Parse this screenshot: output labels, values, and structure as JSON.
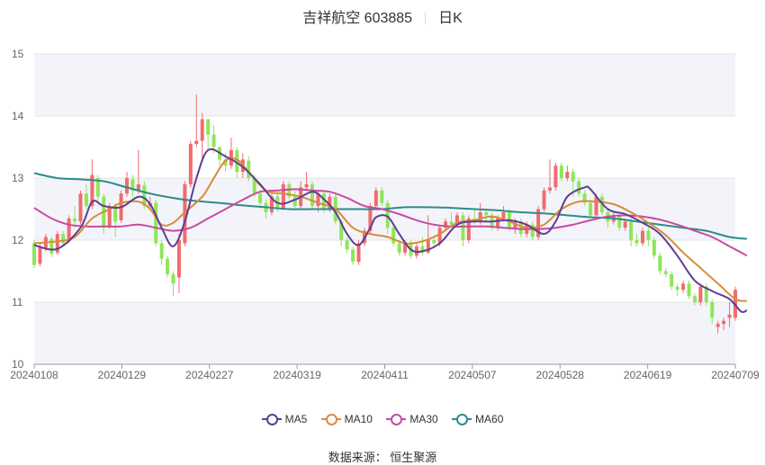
{
  "header": {
    "name": "吉祥航空 603885",
    "period": "日K"
  },
  "legend": {
    "ma5": "MA5",
    "ma10": "MA10",
    "ma30": "MA30",
    "ma60": "MA60"
  },
  "source": "数据来源：  恒生聚源",
  "colors": {
    "up": "#f26b6b",
    "down": "#8ee65a",
    "ma5": "#5d3e96",
    "ma10": "#d98b3a",
    "ma30": "#c84ba0",
    "ma60": "#2e8b8b",
    "band": "#f3f4fa",
    "grid": "#e3e3e3"
  },
  "chart_data": {
    "type": "candlestick",
    "ylim": [
      10,
      15
    ],
    "yticks": [
      10,
      11,
      12,
      13,
      14,
      15
    ],
    "xticks": [
      "20240108",
      "20240129",
      "20240227",
      "20240319",
      "20240411",
      "20240507",
      "20240528",
      "20240619",
      "20240709"
    ],
    "candles": [
      [
        11.95,
        11.6,
        12.0,
        11.55
      ],
      [
        11.62,
        11.88,
        11.95,
        11.58
      ],
      [
        11.86,
        12.05,
        12.1,
        11.82
      ],
      [
        12.02,
        11.78,
        12.05,
        11.72
      ],
      [
        11.8,
        12.1,
        12.15,
        11.76
      ],
      [
        12.1,
        11.95,
        12.15,
        11.9
      ],
      [
        11.98,
        12.35,
        12.4,
        11.95
      ],
      [
        12.35,
        12.3,
        12.55,
        12.2
      ],
      [
        12.3,
        12.75,
        12.8,
        12.25
      ],
      [
        12.75,
        12.55,
        12.9,
        12.5
      ],
      [
        12.55,
        13.05,
        13.3,
        12.5
      ],
      [
        13.0,
        12.7,
        13.05,
        12.6
      ],
      [
        12.7,
        12.2,
        12.75,
        12.1
      ],
      [
        12.22,
        12.55,
        12.6,
        12.18
      ],
      [
        12.55,
        12.3,
        12.6,
        12.05
      ],
      [
        12.32,
        12.75,
        12.8,
        12.28
      ],
      [
        12.75,
        13.0,
        13.1,
        12.7
      ],
      [
        12.98,
        12.8,
        13.05,
        12.7
      ],
      [
        12.8,
        12.9,
        13.45,
        12.75
      ],
      [
        12.88,
        12.55,
        12.95,
        12.5
      ],
      [
        12.55,
        12.6,
        12.7,
        12.5
      ],
      [
        12.6,
        11.95,
        12.65,
        11.9
      ],
      [
        11.95,
        11.7,
        12.0,
        11.6
      ],
      [
        11.7,
        11.45,
        11.75,
        11.4
      ],
      [
        11.45,
        11.3,
        11.5,
        11.1
      ],
      [
        11.4,
        12.0,
        12.1,
        11.15
      ],
      [
        11.95,
        12.9,
        12.95,
        11.9
      ],
      [
        12.9,
        13.55,
        13.6,
        12.85
      ],
      [
        13.55,
        13.6,
        14.35,
        13.5
      ],
      [
        13.6,
        13.95,
        14.05,
        13.3
      ],
      [
        13.95,
        13.7,
        13.9,
        13.45
      ],
      [
        13.7,
        13.5,
        13.85,
        13.4
      ],
      [
        13.5,
        13.3,
        13.5,
        13.2
      ],
      [
        13.3,
        13.2,
        13.4,
        13.1
      ],
      [
        13.2,
        13.45,
        13.65,
        13.15
      ],
      [
        13.45,
        13.1,
        13.5,
        13.0
      ],
      [
        13.1,
        13.3,
        13.4,
        13.0
      ],
      [
        13.28,
        13.0,
        13.35,
        12.95
      ],
      [
        13.0,
        12.75,
        13.05,
        12.7
      ],
      [
        12.75,
        12.6,
        12.8,
        12.5
      ],
      [
        12.6,
        12.45,
        12.65,
        12.35
      ],
      [
        12.45,
        12.7,
        12.75,
        12.4
      ],
      [
        12.7,
        12.5,
        12.75,
        12.45
      ],
      [
        12.5,
        12.9,
        12.95,
        12.48
      ],
      [
        12.9,
        12.7,
        12.95,
        12.65
      ],
      [
        12.7,
        12.55,
        12.8,
        12.5
      ],
      [
        12.55,
        12.85,
        12.95,
        12.5
      ],
      [
        12.85,
        12.9,
        13.1,
        12.8
      ],
      [
        12.9,
        12.55,
        12.95,
        12.5
      ],
      [
        12.55,
        12.75,
        12.8,
        12.45
      ],
      [
        12.75,
        12.5,
        12.8,
        12.45
      ],
      [
        12.5,
        12.7,
        12.75,
        12.45
      ],
      [
        12.7,
        12.3,
        12.75,
        12.25
      ],
      [
        12.3,
        12.0,
        12.35,
        11.9
      ],
      [
        12.0,
        11.85,
        12.05,
        11.8
      ],
      [
        11.85,
        11.65,
        11.9,
        11.6
      ],
      [
        11.65,
        11.95,
        12.0,
        11.6
      ],
      [
        11.95,
        12.15,
        12.2,
        11.9
      ],
      [
        12.15,
        12.55,
        12.6,
        12.1
      ],
      [
        12.55,
        12.8,
        12.85,
        12.5
      ],
      [
        12.8,
        12.6,
        12.85,
        12.55
      ],
      [
        12.6,
        12.2,
        12.65,
        12.1
      ],
      [
        12.2,
        11.95,
        12.25,
        11.9
      ],
      [
        11.95,
        11.8,
        12.0,
        11.75
      ],
      [
        11.8,
        11.95,
        12.0,
        11.75
      ],
      [
        11.95,
        11.75,
        12.0,
        11.7
      ],
      [
        11.75,
        11.9,
        11.95,
        11.7
      ],
      [
        11.9,
        11.8,
        12.05,
        11.75
      ],
      [
        11.8,
        12.0,
        12.4,
        11.78
      ],
      [
        12.0,
        11.95,
        12.05,
        11.9
      ],
      [
        11.95,
        12.2,
        12.25,
        11.9
      ],
      [
        12.2,
        12.3,
        12.35,
        12.15
      ],
      [
        12.3,
        12.25,
        12.45,
        12.2
      ],
      [
        12.25,
        12.4,
        12.45,
        12.2
      ],
      [
        12.4,
        12.0,
        12.45,
        11.9
      ],
      [
        12.0,
        12.35,
        12.4,
        11.95
      ],
      [
        12.35,
        12.3,
        12.5,
        12.25
      ],
      [
        12.3,
        12.45,
        12.6,
        12.25
      ],
      [
        12.45,
        12.4,
        12.5,
        12.3
      ],
      [
        12.4,
        12.2,
        12.45,
        12.15
      ],
      [
        12.2,
        12.35,
        12.4,
        12.15
      ],
      [
        12.35,
        12.45,
        12.55,
        12.3
      ],
      [
        12.45,
        12.2,
        12.5,
        12.15
      ],
      [
        12.2,
        12.3,
        12.35,
        12.1
      ],
      [
        12.3,
        12.1,
        12.35,
        12.05
      ],
      [
        12.1,
        12.25,
        12.3,
        12.05
      ],
      [
        12.25,
        12.05,
        12.3,
        12.0
      ],
      [
        12.05,
        12.5,
        12.55,
        12.0
      ],
      [
        12.5,
        12.8,
        12.85,
        12.45
      ],
      [
        12.8,
        12.85,
        13.3,
        12.75
      ],
      [
        12.85,
        13.2,
        13.25,
        12.8
      ],
      [
        13.2,
        13.0,
        13.25,
        12.95
      ],
      [
        13.0,
        13.1,
        13.2,
        12.95
      ],
      [
        13.1,
        12.95,
        13.15,
        12.7
      ],
      [
        12.95,
        12.75,
        13.0,
        12.7
      ],
      [
        12.75,
        12.6,
        12.8,
        12.55
      ],
      [
        12.6,
        12.4,
        12.65,
        12.35
      ],
      [
        12.4,
        12.7,
        12.75,
        12.35
      ],
      [
        12.7,
        12.45,
        12.75,
        12.4
      ],
      [
        12.45,
        12.3,
        12.5,
        12.2
      ],
      [
        12.3,
        12.4,
        12.45,
        12.25
      ],
      [
        12.4,
        12.2,
        12.45,
        12.15
      ],
      [
        12.2,
        12.3,
        12.35,
        12.15
      ],
      [
        12.3,
        12.0,
        12.35,
        11.9
      ],
      [
        12.0,
        11.95,
        12.1,
        11.9
      ],
      [
        11.95,
        12.15,
        12.2,
        11.9
      ],
      [
        12.15,
        12.0,
        12.2,
        11.9
      ],
      [
        12.0,
        11.75,
        12.05,
        11.7
      ],
      [
        11.75,
        11.5,
        11.8,
        11.45
      ],
      [
        11.5,
        11.45,
        11.55,
        11.4
      ],
      [
        11.45,
        11.25,
        11.5,
        11.2
      ],
      [
        11.25,
        11.2,
        11.3,
        11.1
      ],
      [
        11.2,
        11.3,
        11.35,
        11.15
      ],
      [
        11.3,
        11.1,
        11.35,
        11.05
      ],
      [
        11.1,
        11.0,
        11.15,
        10.95
      ],
      [
        11.0,
        11.25,
        11.3,
        10.95
      ],
      [
        11.25,
        11.0,
        11.3,
        10.95
      ],
      [
        11.0,
        10.75,
        11.05,
        10.65
      ],
      [
        10.6,
        10.65,
        10.7,
        10.5
      ],
      [
        10.65,
        10.7,
        10.75,
        10.55
      ],
      [
        10.75,
        10.8,
        11.0,
        10.6
      ],
      [
        10.75,
        11.2,
        11.25,
        10.7
      ]
    ],
    "ma5": [
      [
        0,
        11.92
      ],
      [
        4,
        11.86
      ],
      [
        8,
        12.2
      ],
      [
        10,
        12.62
      ],
      [
        12,
        12.55
      ],
      [
        15,
        12.53
      ],
      [
        18,
        12.7
      ],
      [
        20,
        12.58
      ],
      [
        22,
        12.2
      ],
      [
        24,
        11.9
      ],
      [
        26,
        12.3
      ],
      [
        28,
        13.0
      ],
      [
        30,
        13.45
      ],
      [
        33,
        13.35
      ],
      [
        36,
        13.18
      ],
      [
        39,
        12.9
      ],
      [
        42,
        12.6
      ],
      [
        45,
        12.65
      ],
      [
        48,
        12.78
      ],
      [
        50,
        12.66
      ],
      [
        52,
        12.45
      ],
      [
        54,
        12.1
      ],
      [
        56,
        11.92
      ],
      [
        58,
        12.2
      ],
      [
        59,
        12.37
      ],
      [
        61,
        12.38
      ],
      [
        63,
        12.1
      ],
      [
        65,
        11.85
      ],
      [
        67,
        11.82
      ],
      [
        70,
        11.95
      ],
      [
        73,
        12.25
      ],
      [
        76,
        12.3
      ],
      [
        79,
        12.3
      ],
      [
        82,
        12.32
      ],
      [
        85,
        12.25
      ],
      [
        88,
        12.1
      ],
      [
        90,
        12.3
      ],
      [
        92,
        12.7
      ],
      [
        95,
        12.85
      ],
      [
        96,
        12.82
      ],
      [
        99,
        12.5
      ],
      [
        102,
        12.42
      ],
      [
        105,
        12.28
      ],
      [
        108,
        12.1
      ],
      [
        111,
        11.75
      ],
      [
        114,
        11.35
      ],
      [
        117,
        11.18
      ],
      [
        120,
        11.05
      ],
      [
        122,
        10.85
      ],
      [
        123,
        10.87
      ]
    ],
    "ma10": [
      [
        0,
        11.95
      ],
      [
        4,
        11.98
      ],
      [
        7,
        12.05
      ],
      [
        10,
        12.35
      ],
      [
        13,
        12.5
      ],
      [
        15,
        12.6
      ],
      [
        18,
        12.62
      ],
      [
        20,
        12.5
      ],
      [
        22,
        12.25
      ],
      [
        24,
        12.28
      ],
      [
        26,
        12.45
      ],
      [
        29,
        12.7
      ],
      [
        31,
        13.0
      ],
      [
        33,
        13.28
      ],
      [
        35,
        13.3
      ],
      [
        37,
        13.1
      ],
      [
        40,
        12.8
      ],
      [
        43,
        12.75
      ],
      [
        46,
        12.7
      ],
      [
        49,
        12.6
      ],
      [
        52,
        12.5
      ],
      [
        55,
        12.2
      ],
      [
        58,
        12.1
      ],
      [
        61,
        12.05
      ],
      [
        64,
        11.95
      ],
      [
        67,
        11.98
      ],
      [
        70,
        12.1
      ],
      [
        73,
        12.28
      ],
      [
        76,
        12.32
      ],
      [
        79,
        12.38
      ],
      [
        82,
        12.3
      ],
      [
        85,
        12.2
      ],
      [
        88,
        12.25
      ],
      [
        91,
        12.5
      ],
      [
        94,
        12.62
      ],
      [
        97,
        12.62
      ],
      [
        100,
        12.58
      ],
      [
        103,
        12.45
      ],
      [
        106,
        12.28
      ],
      [
        109,
        12.08
      ],
      [
        112,
        11.8
      ],
      [
        115,
        11.55
      ],
      [
        118,
        11.3
      ],
      [
        121,
        11.05
      ],
      [
        123,
        11.02
      ]
    ],
    "ma30": [
      [
        0,
        12.52
      ],
      [
        3,
        12.35
      ],
      [
        6,
        12.25
      ],
      [
        9,
        12.22
      ],
      [
        12,
        12.22
      ],
      [
        15,
        12.22
      ],
      [
        18,
        12.25
      ],
      [
        21,
        12.2
      ],
      [
        24,
        12.15
      ],
      [
        27,
        12.2
      ],
      [
        30,
        12.35
      ],
      [
        33,
        12.5
      ],
      [
        36,
        12.65
      ],
      [
        39,
        12.78
      ],
      [
        42,
        12.8
      ],
      [
        45,
        12.82
      ],
      [
        48,
        12.8
      ],
      [
        51,
        12.78
      ],
      [
        54,
        12.68
      ],
      [
        57,
        12.55
      ],
      [
        60,
        12.5
      ],
      [
        63,
        12.42
      ],
      [
        66,
        12.32
      ],
      [
        69,
        12.25
      ],
      [
        72,
        12.22
      ],
      [
        75,
        12.22
      ],
      [
        78,
        12.22
      ],
      [
        81,
        12.2
      ],
      [
        84,
        12.18
      ],
      [
        87,
        12.18
      ],
      [
        90,
        12.2
      ],
      [
        93,
        12.25
      ],
      [
        96,
        12.32
      ],
      [
        99,
        12.38
      ],
      [
        102,
        12.4
      ],
      [
        105,
        12.38
      ],
      [
        108,
        12.33
      ],
      [
        111,
        12.25
      ],
      [
        114,
        12.15
      ],
      [
        117,
        12.05
      ],
      [
        120,
        11.9
      ],
      [
        123,
        11.75
      ]
    ],
    "ma60": [
      [
        0,
        13.08
      ],
      [
        4,
        13.0
      ],
      [
        8,
        12.98
      ],
      [
        12,
        12.95
      ],
      [
        16,
        12.85
      ],
      [
        20,
        12.75
      ],
      [
        24,
        12.68
      ],
      [
        28,
        12.63
      ],
      [
        32,
        12.6
      ],
      [
        36,
        12.56
      ],
      [
        40,
        12.53
      ],
      [
        44,
        12.5
      ],
      [
        48,
        12.5
      ],
      [
        52,
        12.5
      ],
      [
        56,
        12.5
      ],
      [
        60,
        12.5
      ],
      [
        64,
        12.53
      ],
      [
        68,
        12.53
      ],
      [
        72,
        12.52
      ],
      [
        76,
        12.5
      ],
      [
        80,
        12.48
      ],
      [
        84,
        12.45
      ],
      [
        88,
        12.43
      ],
      [
        92,
        12.4
      ],
      [
        96,
        12.37
      ],
      [
        100,
        12.35
      ],
      [
        104,
        12.3
      ],
      [
        108,
        12.25
      ],
      [
        112,
        12.2
      ],
      [
        116,
        12.15
      ],
      [
        120,
        12.05
      ],
      [
        123,
        12.02
      ]
    ]
  }
}
